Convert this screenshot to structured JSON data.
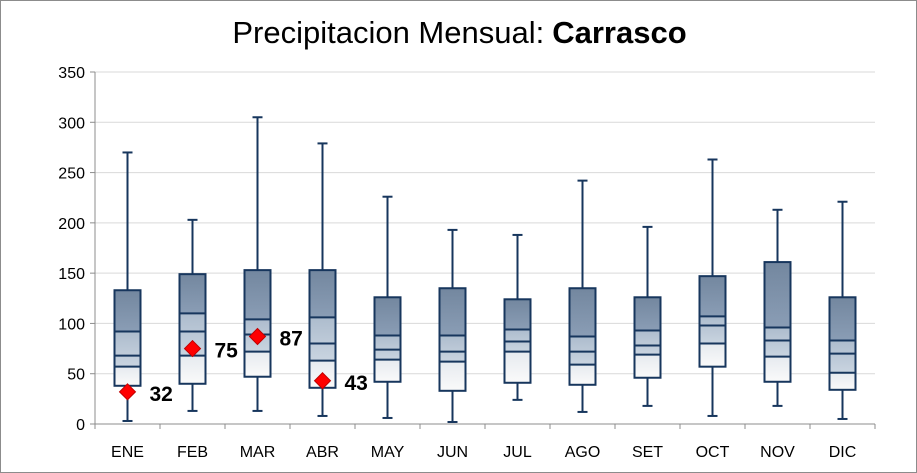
{
  "chart_data": {
    "type": "boxplot",
    "title": "Precipitacion Mensual:",
    "station": "Carrasco",
    "categories": [
      "ENE",
      "FEB",
      "MAR",
      "ABR",
      "MAY",
      "JUN",
      "JUL",
      "AGO",
      "SET",
      "OCT",
      "NOV",
      "DIC"
    ],
    "ylim": [
      0,
      350
    ],
    "yticks": [
      0,
      50,
      100,
      150,
      200,
      250,
      300,
      350
    ],
    "grid": true,
    "boxes": [
      {
        "min": 3,
        "p10": 38,
        "p25": 57,
        "median": 68,
        "p75": 92,
        "p90": 133,
        "max": 270
      },
      {
        "min": 13,
        "p10": 40,
        "p25": 68,
        "median": 92,
        "p75": 110,
        "p90": 149,
        "max": 203
      },
      {
        "min": 13,
        "p10": 47,
        "p25": 72,
        "median": 89,
        "p75": 104,
        "p90": 153,
        "max": 305
      },
      {
        "min": 8,
        "p10": 36,
        "p25": 63,
        "median": 80,
        "p75": 106,
        "p90": 153,
        "max": 279
      },
      {
        "min": 6,
        "p10": 42,
        "p25": 64,
        "median": 74,
        "p75": 88,
        "p90": 126,
        "max": 226
      },
      {
        "min": 2,
        "p10": 33,
        "p25": 62,
        "median": 72,
        "p75": 88,
        "p90": 135,
        "max": 193
      },
      {
        "min": 24,
        "p10": 41,
        "p25": 72,
        "median": 82,
        "p75": 94,
        "p90": 124,
        "max": 188
      },
      {
        "min": 12,
        "p10": 39,
        "p25": 59,
        "median": 72,
        "p75": 87,
        "p90": 135,
        "max": 242
      },
      {
        "min": 18,
        "p10": 46,
        "p25": 69,
        "median": 78,
        "p75": 93,
        "p90": 126,
        "max": 196
      },
      {
        "min": 8,
        "p10": 57,
        "p25": 80,
        "median": 98,
        "p75": 107,
        "p90": 147,
        "max": 263
      },
      {
        "min": 18,
        "p10": 42,
        "p25": 67,
        "median": 83,
        "p75": 96,
        "p90": 161,
        "max": 213
      },
      {
        "min": 5,
        "p10": 34,
        "p25": 51,
        "median": 70,
        "p75": 83,
        "p90": 126,
        "max": 221
      }
    ],
    "observed": [
      {
        "month": "ENE",
        "value": 32,
        "label": "32"
      },
      {
        "month": "FEB",
        "value": 75,
        "label": "75"
      },
      {
        "month": "MAR",
        "value": 87,
        "label": "87"
      },
      {
        "month": "ABR",
        "value": 43,
        "label": "43"
      }
    ],
    "colors": {
      "box_outline": "#17365d",
      "upper_fill": "#7f93ad",
      "mid_fill": "#b8c6d6",
      "lower_fill": "#f2f2f2",
      "whisker": "#17365d",
      "grid": "#d9d9d9",
      "marker": "#ff0000",
      "marker_edge": "#c00000"
    }
  }
}
